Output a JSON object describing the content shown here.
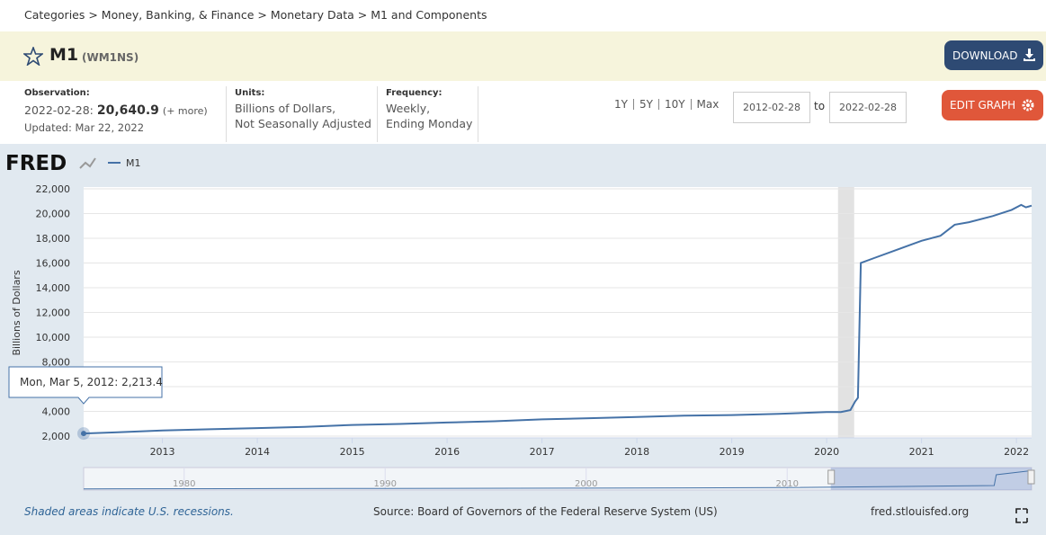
{
  "header": {
    "breadcrumb": "Categories > Money, Banking, & Finance > Monetary Data > M1 and Components",
    "title": "M1",
    "code": "(WM1NS)",
    "download": "DOWNLOAD"
  },
  "info": {
    "observation_label": "Observation:",
    "observation_date": "2022-02-28:",
    "observation_value": "20,640.9",
    "more": "(+ more)",
    "updated": "Updated: Mar 22, 2022",
    "units_label": "Units:",
    "units": [
      "Billions of Dollars,",
      "Not Seasonally Adjusted"
    ],
    "frequency_label": "Frequency:",
    "frequency": [
      "Weekly,",
      "Ending Monday"
    ],
    "ranges": [
      "1Y",
      "5Y",
      "10Y",
      "Max"
    ],
    "start_date": "2012-02-28",
    "to": "to",
    "end_date": "2022-02-28",
    "edit": "EDIT GRAPH"
  },
  "logo": "FRED",
  "tooltip": {
    "date": "Mon, Mar 5, 2012:",
    "value": "2,213.4"
  },
  "chart_data": {
    "type": "line",
    "y_label": "Billions of Dollars",
    "x": [
      2012.17,
      2012.5,
      2013,
      2013.5,
      2014,
      2014.5,
      2015,
      2015.5,
      2016,
      2016.5,
      2017,
      2017.5,
      2018,
      2018.5,
      2019,
      2019.5,
      2020,
      2020.15,
      2020.25,
      2020.3,
      2020.33,
      2020.36,
      2020.5,
      2020.75,
      2021,
      2021.2,
      2021.35,
      2021.5,
      2021.75,
      2021.95,
      2022.05,
      2022.1,
      2022.16
    ],
    "series": [
      {
        "name": "M1",
        "color": "#4572a7",
        "values": [
          2213.4,
          2300,
          2450,
          2550,
          2650,
          2750,
          2900,
          2980,
          3100,
          3200,
          3350,
          3450,
          3550,
          3650,
          3700,
          3800,
          3950,
          3950,
          4100,
          4800,
          5100,
          16000,
          16400,
          17100,
          17800,
          18200,
          19100,
          19300,
          19800,
          20300,
          20700,
          20500,
          20640.9
        ]
      }
    ],
    "xlim": [
      2012.17,
      2022.16
    ],
    "xticks": [
      2013,
      2014,
      2015,
      2016,
      2017,
      2018,
      2019,
      2020,
      2021,
      2022
    ],
    "ylim": [
      2000,
      22000
    ],
    "yticks": [
      {
        "value": 2000,
        "label": "2,000"
      },
      {
        "value": 4000,
        "label": "4,000"
      },
      {
        "value": 6000,
        "label": "6,000"
      },
      {
        "value": 8000,
        "label": "8,000"
      },
      {
        "value": 10000,
        "label": "10,000"
      },
      {
        "value": 12000,
        "label": "12,000"
      },
      {
        "value": 14000,
        "label": "14,000"
      },
      {
        "value": 16000,
        "label": "16,000"
      },
      {
        "value": 18000,
        "label": "18,000"
      },
      {
        "value": 20000,
        "label": "20,000"
      },
      {
        "value": 22000,
        "label": "22,000"
      }
    ],
    "grid": true,
    "recessions": [
      [
        2020.12,
        2020.29
      ]
    ]
  },
  "navigator": {
    "x": [
      1975,
      1990,
      2000,
      2010,
      2020.3,
      2020.4,
      2022.16
    ],
    "values": [
      280,
      820,
      1100,
      1700,
      4000,
      16000,
      20640.9
    ],
    "xlim": [
      1975,
      2022.16
    ],
    "ylim": [
      0,
      22000
    ],
    "xticks": [
      1980,
      1990,
      2000,
      2010
    ]
  },
  "footer": {
    "recession_note": "Shaded areas indicate U.S. recessions.",
    "source": "Source: Board of Governors of the Federal Reserve System (US)",
    "site": "fred.stlouisfed.org"
  }
}
